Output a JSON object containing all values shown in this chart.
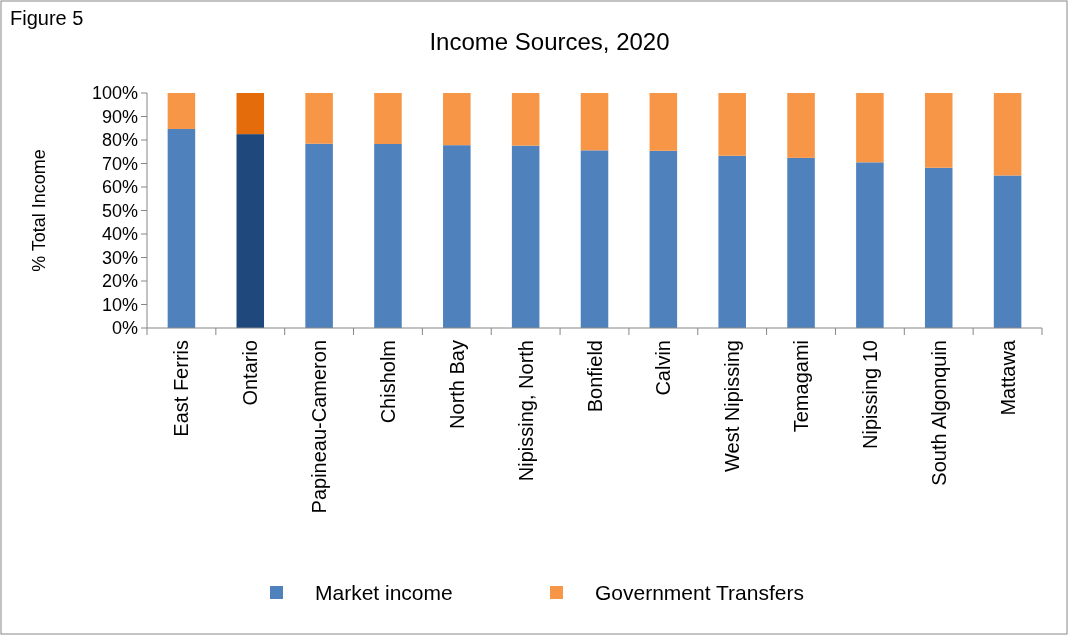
{
  "chart_data": {
    "type": "bar",
    "title": "Income Sources, 2020",
    "ylabel": "% Total Income",
    "annotations": [
      "Figure 5"
    ],
    "stacked": true,
    "legend": "bottom",
    "grid": false,
    "categories": [
      "East Ferris",
      "Ontario",
      "Papineau-Cameron",
      "Chisholm",
      "North Bay",
      "Nipissing, North",
      "Bonfield",
      "Calvin",
      "West Nipissing",
      "Temagami",
      "Nipissing 10",
      "South Algonquin",
      "Mattawa"
    ],
    "ylim": [
      0,
      100
    ],
    "yticks": [
      {
        "value": 0,
        "label": "0%"
      },
      {
        "value": 10,
        "label": "10%"
      },
      {
        "value": 20,
        "label": "20%"
      },
      {
        "value": 30,
        "label": "30%"
      },
      {
        "value": 40,
        "label": "40%"
      },
      {
        "value": 50,
        "label": "50%"
      },
      {
        "value": 60,
        "label": "60%"
      },
      {
        "value": 70,
        "label": "70%"
      },
      {
        "value": 80,
        "label": "80%"
      },
      {
        "value": 90,
        "label": "90%"
      },
      {
        "value": 100,
        "label": "100%"
      }
    ],
    "series": [
      {
        "name": "Market income",
        "color": "#4f81bd",
        "colors": [
          "#4f81bd",
          "#1f497d",
          "#4f81bd",
          "#4f81bd",
          "#4f81bd",
          "#4f81bd",
          "#4f81bd",
          "#4f81bd",
          "#4f81bd",
          "#4f81bd",
          "#4f81bd",
          "#4f81bd",
          "#4f81bd"
        ],
        "values": [
          84.7,
          82.5,
          78.4,
          78.3,
          77.8,
          77.6,
          75.6,
          75.4,
          73.3,
          72.4,
          70.5,
          68.2,
          64.9
        ]
      },
      {
        "name": "Government Transfers",
        "color": "#f79646",
        "colors": [
          "#f79646",
          "#e46c0a",
          "#f79646",
          "#f79646",
          "#f79646",
          "#f79646",
          "#f79646",
          "#f79646",
          "#f79646",
          "#f79646",
          "#f79646",
          "#f79646",
          "#f79646"
        ],
        "values": [
          15.3,
          17.5,
          21.6,
          21.7,
          22.2,
          22.4,
          24.4,
          24.6,
          26.7,
          27.6,
          29.5,
          31.8,
          35.1
        ]
      }
    ]
  }
}
